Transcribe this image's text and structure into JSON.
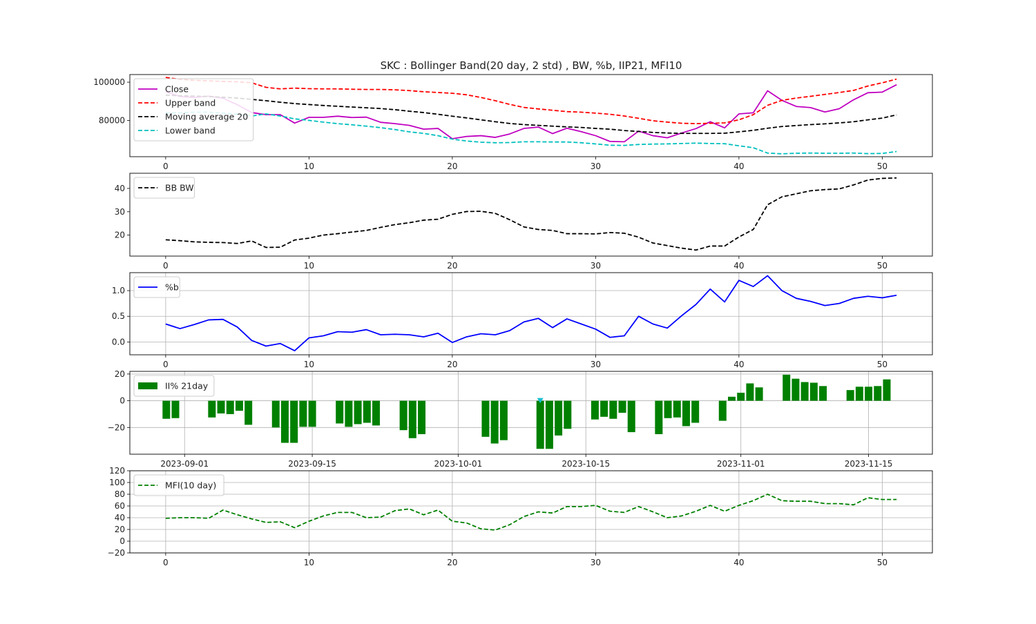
{
  "title": "SKC : Bollinger Band(20 day, 2 std) , BW, %b, IIP21, MFI10",
  "colors": {
    "close": "#c000c0",
    "upper": "#ff0000",
    "ma": "#000000",
    "lower": "#00bfbf",
    "bw": "#000000",
    "pb": "#0000ff",
    "ii": "#008000",
    "mfi": "#008000",
    "marker": "#17becf",
    "grid": "#b0b0b0"
  },
  "chart_data": [
    {
      "type": "line",
      "x": [
        0,
        1,
        2,
        3,
        4,
        5,
        6,
        7,
        8,
        9,
        10,
        11,
        12,
        13,
        14,
        15,
        16,
        17,
        18,
        19,
        20,
        21,
        22,
        23,
        24,
        25,
        26,
        27,
        28,
        29,
        30,
        31,
        32,
        33,
        34,
        35,
        36,
        37,
        38,
        39,
        40,
        41,
        42,
        43,
        44,
        45,
        46,
        47,
        48,
        49,
        50,
        51
      ],
      "series": [
        {
          "name": "Close",
          "style": "solid",
          "values": [
            95000,
            92500,
            92000,
            92700,
            91600,
            88200,
            84100,
            83000,
            83000,
            78600,
            81600,
            81600,
            82200,
            81500,
            81700,
            79000,
            78300,
            77400,
            75400,
            75800,
            70400,
            71600,
            72000,
            71100,
            72900,
            75800,
            76500,
            73100,
            75900,
            74100,
            72000,
            69000,
            68800,
            74400,
            72000,
            70900,
            73400,
            75700,
            79300,
            76100,
            83400,
            84000,
            95500,
            90500,
            87300,
            86700,
            84400,
            86100,
            90800,
            94500,
            94800,
            98700
          ]
        },
        {
          "name": "Upper band",
          "style": "dashed",
          "values": [
            102500,
            101500,
            101000,
            100700,
            100400,
            100200,
            99700,
            97300,
            96500,
            96900,
            96600,
            96500,
            96500,
            96300,
            96200,
            96200,
            96000,
            95600,
            95000,
            94600,
            94200,
            93400,
            92000,
            90300,
            88400,
            86800,
            86000,
            85300,
            84600,
            84300,
            83800,
            83200,
            82300,
            81100,
            79800,
            79100,
            78500,
            78300,
            78500,
            78700,
            80300,
            83000,
            87900,
            90500,
            91700,
            92600,
            93600,
            94600,
            95700,
            98000,
            99700,
            101600
          ]
        },
        {
          "name": "Moving average 20",
          "style": "dashed",
          "values": [
            93200,
            92900,
            92700,
            92500,
            92100,
            91700,
            91000,
            90300,
            89500,
            88800,
            88300,
            87800,
            87400,
            87000,
            86600,
            86200,
            85600,
            84800,
            84100,
            83200,
            82200,
            81300,
            80300,
            79300,
            78400,
            77800,
            77400,
            77000,
            76600,
            76300,
            75800,
            75400,
            74700,
            74200,
            73700,
            73400,
            73200,
            73200,
            73200,
            73300,
            74000,
            74800,
            75900,
            76800,
            77300,
            77800,
            78200,
            78700,
            79300,
            80300,
            81200,
            82900
          ]
        },
        {
          "name": "Lower band",
          "style": "dashed",
          "values": [
            84000,
            84000,
            84300,
            84300,
            83800,
            83200,
            82300,
            83400,
            82300,
            80800,
            80000,
            79100,
            78300,
            77700,
            77000,
            76200,
            75200,
            74000,
            73200,
            72000,
            70200,
            69200,
            68600,
            68300,
            68400,
            68800,
            68800,
            68700,
            68700,
            68300,
            67700,
            67000,
            66900,
            67400,
            67600,
            67700,
            67900,
            68100,
            67900,
            67800,
            66700,
            65700,
            62900,
            62500,
            62800,
            62900,
            62800,
            62800,
            62900,
            62600,
            62700,
            63700
          ]
        }
      ],
      "xlim": [
        -2.5,
        53.5
      ],
      "ylim": [
        61000,
        104000
      ],
      "yticks": [
        80000,
        100000
      ],
      "ytick_labels": [
        "80000",
        "100000"
      ],
      "xticks": [
        0,
        10,
        20,
        30,
        40,
        50
      ],
      "xtick_labels": [
        "0",
        "10",
        "20",
        "30",
        "40",
        "50"
      ],
      "grid": false,
      "legend": "upper-left"
    },
    {
      "type": "line",
      "x": [
        0,
        1,
        2,
        3,
        4,
        5,
        6,
        7,
        8,
        9,
        10,
        11,
        12,
        13,
        14,
        15,
        16,
        17,
        18,
        19,
        20,
        21,
        22,
        23,
        24,
        25,
        26,
        27,
        28,
        29,
        30,
        31,
        32,
        33,
        34,
        35,
        36,
        37,
        38,
        39,
        40,
        41,
        42,
        43,
        44,
        45,
        46,
        47,
        48,
        49,
        50,
        51
      ],
      "series": [
        {
          "name": "BB BW",
          "style": "dashed",
          "values": [
            18,
            17.6,
            17.1,
            16.9,
            16.8,
            16.4,
            17.5,
            14.7,
            14.8,
            17.9,
            18.7,
            20,
            20.6,
            21.3,
            22,
            23.3,
            24.5,
            25.3,
            26.4,
            26.8,
            28.9,
            30.1,
            30.2,
            29.3,
            26.6,
            23.5,
            22.4,
            22,
            20.6,
            20.6,
            20.5,
            21.1,
            20.8,
            19.1,
            16.6,
            15.5,
            14.4,
            13.6,
            15.3,
            15.3,
            19.2,
            22.4,
            33,
            36.4,
            37.7,
            39,
            39.5,
            39.8,
            41.5,
            43.6,
            44.3,
            44.5
          ]
        }
      ],
      "xlim": [
        -2.5,
        53.5
      ],
      "ylim": [
        11,
        46.5
      ],
      "yticks": [
        20,
        30,
        40
      ],
      "ytick_labels": [
        "20",
        "30",
        "40"
      ],
      "xticks": [
        0,
        10,
        20,
        30,
        40,
        50
      ],
      "xtick_labels": [
        "0",
        "10",
        "20",
        "30",
        "40",
        "50"
      ],
      "grid": false,
      "legend": "upper-left"
    },
    {
      "type": "line",
      "x": [
        0,
        1,
        2,
        3,
        4,
        5,
        6,
        7,
        8,
        9,
        10,
        11,
        12,
        13,
        14,
        15,
        16,
        17,
        18,
        19,
        20,
        21,
        22,
        23,
        24,
        25,
        26,
        27,
        28,
        29,
        30,
        31,
        32,
        33,
        34,
        35,
        36,
        37,
        38,
        39,
        40,
        41,
        42,
        43,
        44,
        45,
        46,
        47,
        48,
        49,
        50,
        51
      ],
      "series": [
        {
          "name": "%b",
          "style": "solid",
          "values": [
            0.35,
            0.26,
            0.34,
            0.43,
            0.44,
            0.29,
            0.03,
            -0.08,
            -0.03,
            -0.17,
            0.08,
            0.12,
            0.2,
            0.19,
            0.24,
            0.14,
            0.15,
            0.14,
            0.1,
            0.17,
            -0.01,
            0.1,
            0.16,
            0.14,
            0.22,
            0.39,
            0.46,
            0.28,
            0.45,
            0.35,
            0.25,
            0.09,
            0.12,
            0.5,
            0.35,
            0.27,
            0.51,
            0.73,
            1.03,
            0.78,
            1.2,
            1.08,
            1.29,
            1.0,
            0.85,
            0.79,
            0.71,
            0.75,
            0.85,
            0.89,
            0.86,
            0.91
          ]
        }
      ],
      "xlim": [
        -2.5,
        53.5
      ],
      "ylim": [
        -0.25,
        1.35
      ],
      "yticks": [
        0.0,
        0.5,
        1.0
      ],
      "ytick_labels": [
        "0.0",
        "0.5",
        "1.0"
      ],
      "xticks": [
        0,
        10,
        20,
        30,
        40,
        50
      ],
      "xtick_labels": [
        "0",
        "10",
        "20",
        "30",
        "40",
        "50"
      ],
      "grid": true,
      "legend": "upper-left"
    },
    {
      "type": "bar",
      "x": [
        "2023-08-30",
        "2023-08-31",
        "2023-09-04",
        "2023-09-05",
        "2023-09-06",
        "2023-09-07",
        "2023-09-08",
        "2023-09-11",
        "2023-09-12",
        "2023-09-13",
        "2023-09-14",
        "2023-09-15",
        "2023-09-18",
        "2023-09-19",
        "2023-09-20",
        "2023-09-21",
        "2023-09-22",
        "2023-09-25",
        "2023-09-26",
        "2023-09-27",
        "2023-10-04",
        "2023-10-05",
        "2023-10-06",
        "2023-10-10",
        "2023-10-11",
        "2023-10-12",
        "2023-10-13",
        "2023-10-16",
        "2023-10-17",
        "2023-10-18",
        "2023-10-19",
        "2023-10-20",
        "2023-10-23",
        "2023-10-24",
        "2023-10-25",
        "2023-10-26",
        "2023-10-27",
        "2023-10-30",
        "2023-10-31",
        "2023-11-01",
        "2023-11-02",
        "2023-11-03",
        "2023-11-06",
        "2023-11-07",
        "2023-11-08",
        "2023-11-09",
        "2023-11-10",
        "2023-11-13",
        "2023-11-14",
        "2023-11-15",
        "2023-11-16",
        "2023-11-17"
      ],
      "series": [
        {
          "name": "II% 21day",
          "values": [
            -13.5,
            -13,
            -12.5,
            -9.5,
            -10,
            -7.5,
            -18,
            -20,
            -31.5,
            -31.5,
            -19.5,
            -19.5,
            -17,
            -19.5,
            -17.5,
            -16.5,
            -18.5,
            -22,
            -28,
            -25,
            -27,
            -32,
            -29.5,
            -36,
            -36,
            -26,
            -21,
            -14,
            -12,
            -13.5,
            -9,
            -23.5,
            -25,
            -13,
            -12.5,
            -19,
            -16.5,
            -15,
            3,
            6,
            13,
            10,
            19.5,
            16.5,
            14,
            13.5,
            11,
            8,
            10.5,
            10.5,
            11,
            16
          ]
        }
      ],
      "marker_x": "2023-10-10",
      "marker_value": 0,
      "xlim": [
        "2023-08-26",
        "2023-11-22"
      ],
      "ylim": [
        -40,
        22
      ],
      "yticks": [
        -20,
        0,
        20
      ],
      "ytick_labels": [
        "−20",
        "0",
        "20"
      ],
      "xticks": [
        "2023-09-01",
        "2023-09-15",
        "2023-10-01",
        "2023-10-15",
        "2023-11-01",
        "2023-11-15"
      ],
      "xtick_labels": [
        "2023-09-01",
        "2023-09-15",
        "2023-10-01",
        "2023-10-15",
        "2023-11-01",
        "2023-11-15"
      ],
      "grid": true,
      "legend": "upper-left"
    },
    {
      "type": "line",
      "x": [
        0,
        1,
        2,
        3,
        4,
        5,
        6,
        7,
        8,
        9,
        10,
        11,
        12,
        13,
        14,
        15,
        16,
        17,
        18,
        19,
        20,
        21,
        22,
        23,
        24,
        25,
        26,
        27,
        28,
        29,
        30,
        31,
        32,
        33,
        34,
        35,
        36,
        37,
        38,
        39,
        40,
        41,
        42,
        43,
        44,
        45,
        46,
        47,
        48,
        49,
        50,
        51
      ],
      "series": [
        {
          "name": "MFI(10 day)",
          "style": "dashed",
          "values": [
            39,
            40,
            40,
            39,
            53,
            45,
            38,
            32,
            33,
            23,
            34,
            43,
            49,
            49,
            40,
            41,
            52,
            55,
            45,
            53,
            34,
            31,
            21,
            19,
            28,
            42,
            50,
            48,
            59,
            59,
            61,
            51,
            49,
            59,
            50,
            40,
            43,
            51,
            61,
            51,
            61,
            69,
            80,
            69,
            68,
            68,
            64,
            64,
            62,
            74,
            71,
            71
          ]
        }
      ],
      "xlim": [
        -2.5,
        53.5
      ],
      "ylim": [
        -20,
        120
      ],
      "yticks": [
        -20,
        0,
        20,
        40,
        60,
        80,
        100,
        120
      ],
      "ytick_labels": [
        "−20",
        "0",
        "20",
        "40",
        "60",
        "80",
        "100",
        "120"
      ],
      "xticks": [
        0,
        10,
        20,
        30,
        40,
        50
      ],
      "xtick_labels": [
        "0",
        "10",
        "20",
        "30",
        "40",
        "50"
      ],
      "grid": true,
      "legend": "upper-left"
    }
  ]
}
